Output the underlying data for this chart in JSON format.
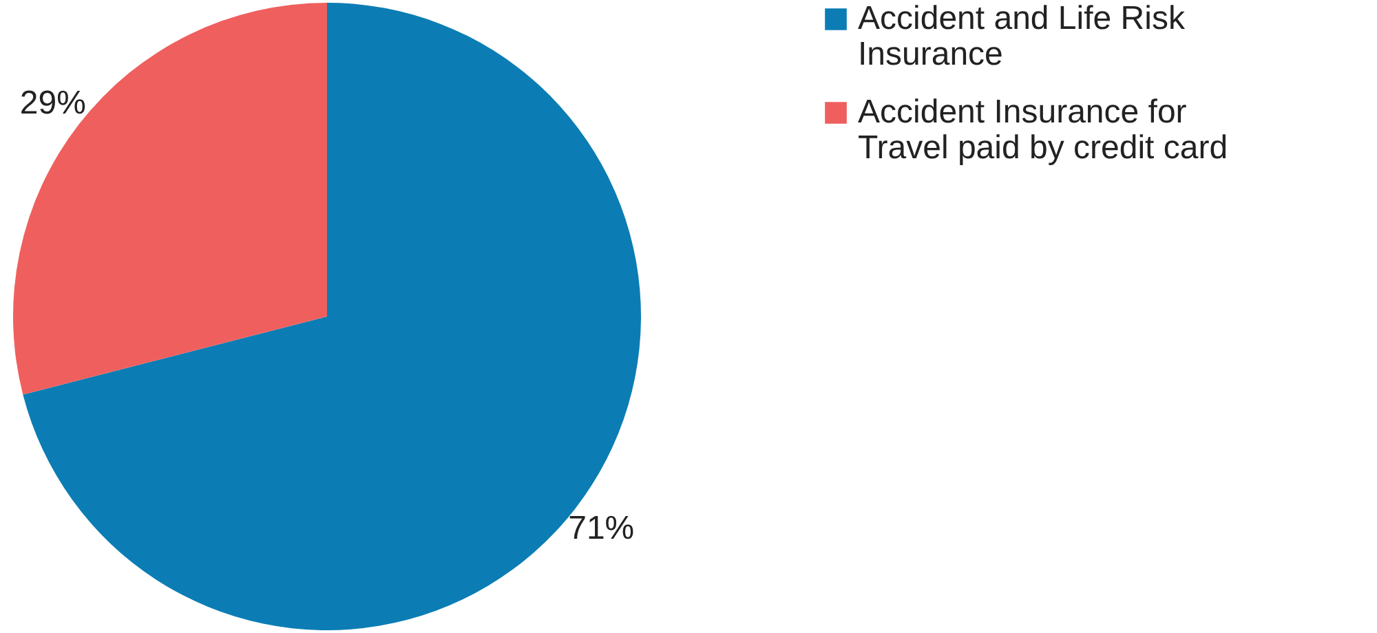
{
  "chart_data": {
    "type": "pie",
    "categories": [
      "Accident and Life Risk Insurance",
      "Accident Insurance for Travel paid by credit card"
    ],
    "values": [
      71,
      29
    ],
    "colors": [
      "#0b7db4",
      "#ef5f5e"
    ],
    "value_labels": [
      "71%",
      "29%"
    ],
    "legend": "right"
  }
}
